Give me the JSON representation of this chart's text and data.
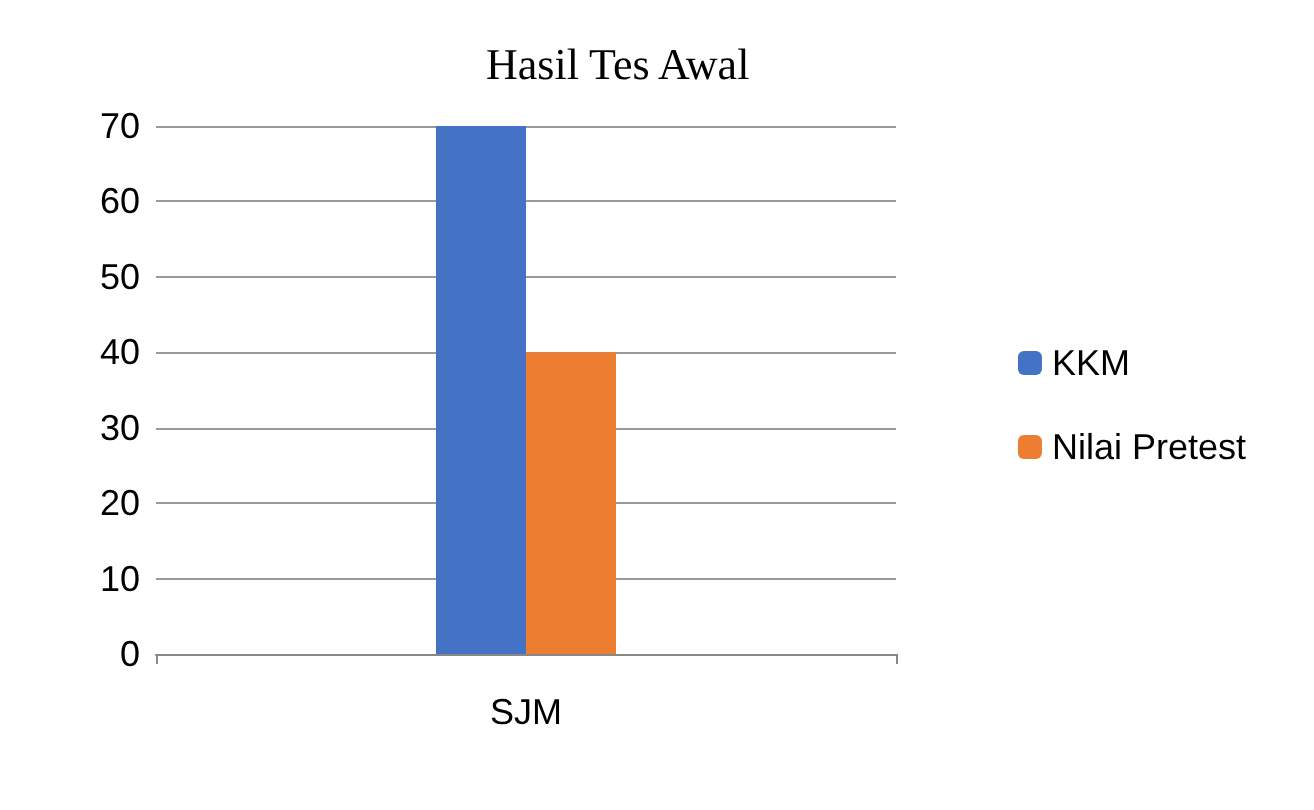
{
  "chart_data": {
    "type": "bar",
    "title": "Hasil Tes Awal",
    "categories": [
      "SJM"
    ],
    "series": [
      {
        "name": "KKM",
        "color": "#4472c4",
        "values": [
          70
        ]
      },
      {
        "name": "Nilai Pretest",
        "color": "#ed7d31",
        "values": [
          40
        ]
      }
    ],
    "ylim": [
      0,
      70
    ],
    "yticks": [
      0,
      10,
      20,
      30,
      40,
      50,
      60,
      70
    ],
    "grid": "y",
    "legend": "right"
  }
}
